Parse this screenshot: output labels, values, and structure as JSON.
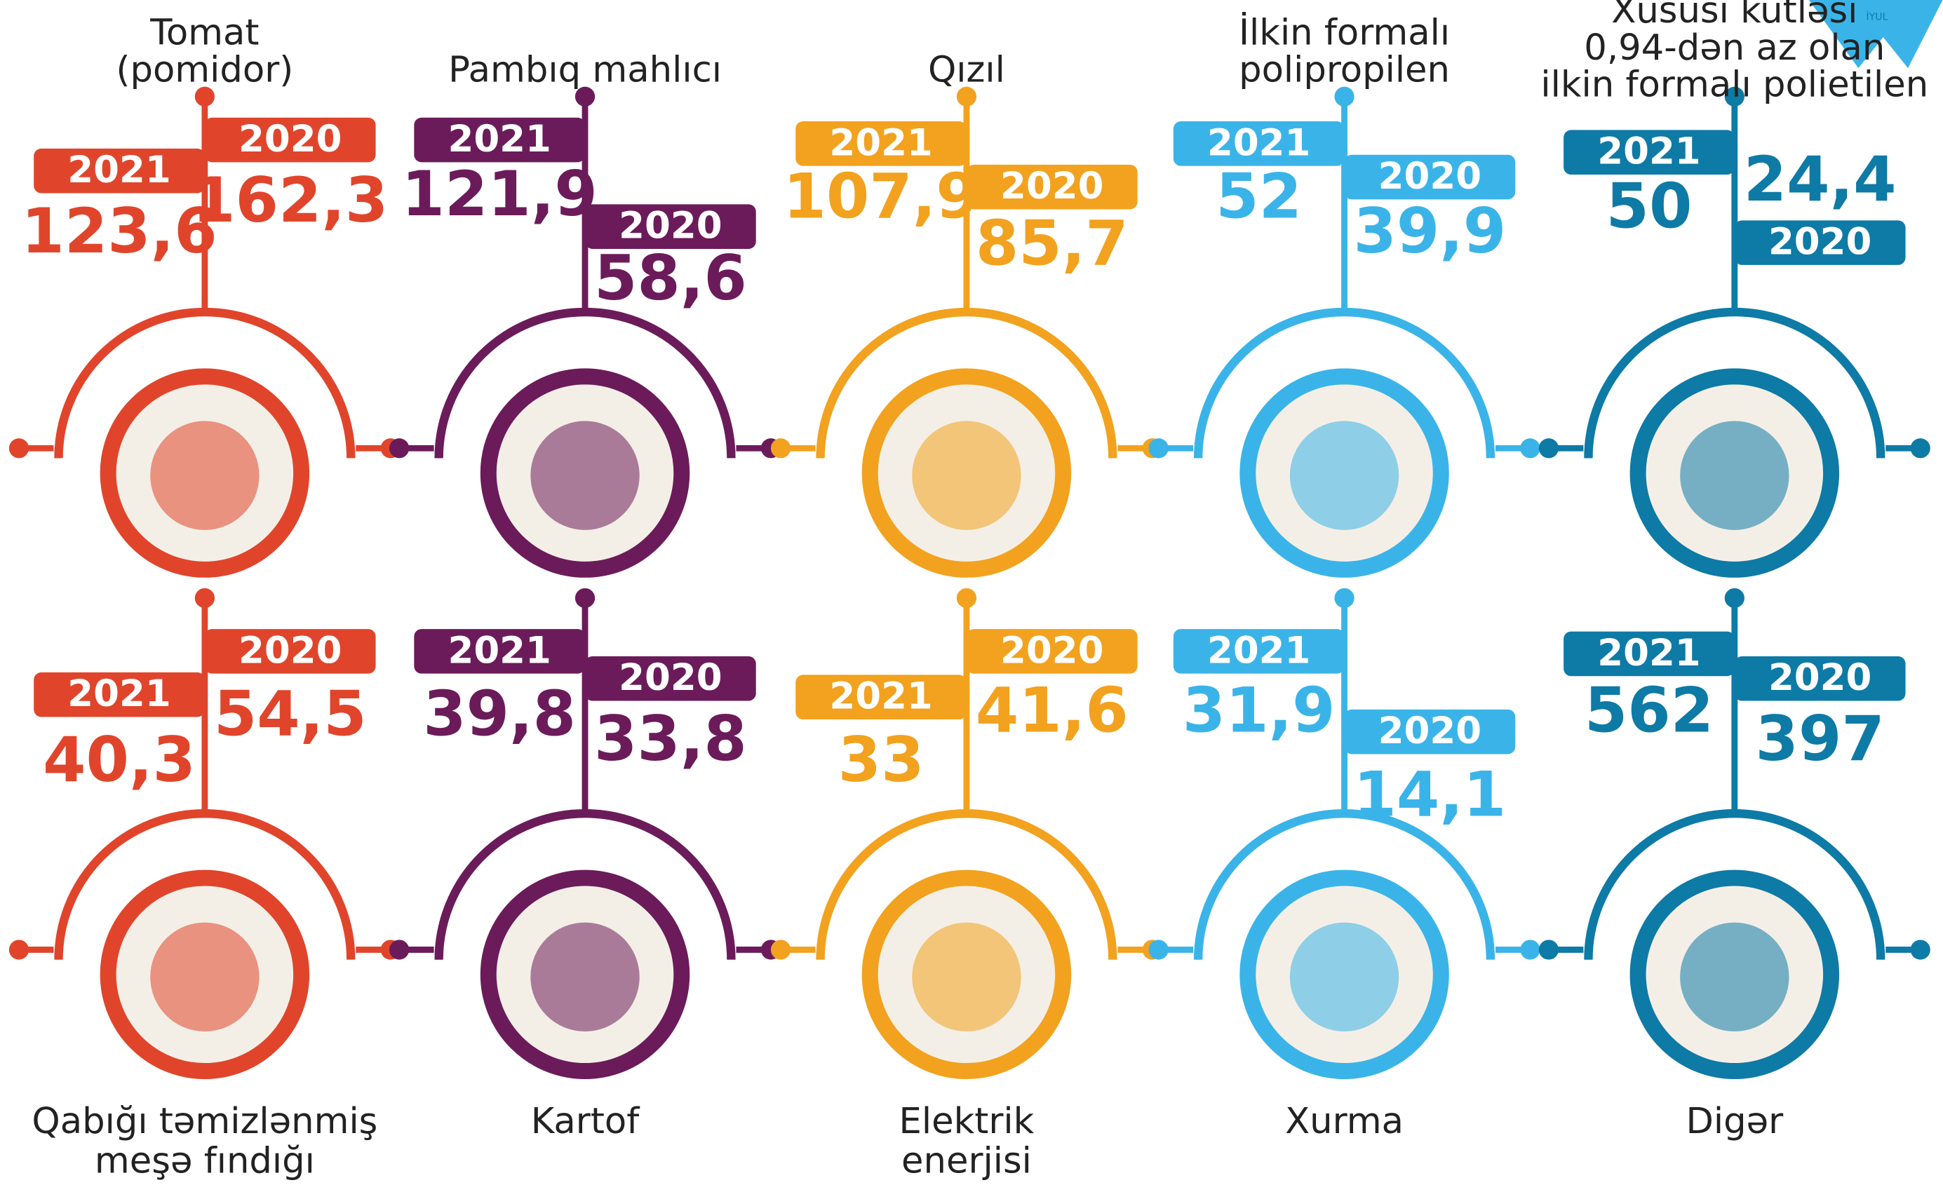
{
  "badge": "İYUL",
  "items": [
    {
      "label": [
        "Tomat",
        "(pomidor)"
      ],
      "color": "#e0452b",
      "year_a": "2021",
      "value_a": "123,6",
      "year_b": "2020",
      "value_b": "162,3"
    },
    {
      "label": [
        "Pambıq mahlıcı"
      ],
      "color": "#6b1b5a",
      "year_a": "2021",
      "value_a": "121,9",
      "year_b": "2020",
      "value_b": "58,6"
    },
    {
      "label": [
        "Qızıl"
      ],
      "color": "#f2a21e",
      "year_a": "2021",
      "value_a": "107,9",
      "year_b": "2020",
      "value_b": "85,7"
    },
    {
      "label": [
        "İlkin formalı",
        "polipropilen"
      ],
      "color": "#3ab4e8",
      "year_a": "2021",
      "value_a": "52",
      "year_b": "2020",
      "value_b": "39,9"
    },
    {
      "label": [
        "Xüsusi kütləsi",
        "0,94-dən az olan",
        "ilkin formalı polietilen"
      ],
      "color": "#0e7aa6",
      "year_a": "2021",
      "value_a": "50",
      "year_b": "2020",
      "value_b": "24,4"
    },
    {
      "label": [
        "Qabığı təmizlənmiş",
        "meşə fındığı"
      ],
      "color": "#e0452b",
      "year_a": "2021",
      "value_a": "40,3",
      "year_b": "2020",
      "value_b": "54,5"
    },
    {
      "label": [
        "Kartof"
      ],
      "color": "#6b1b5a",
      "year_a": "2021",
      "value_a": "39,8",
      "year_b": "2020",
      "value_b": "33,8"
    },
    {
      "label": [
        "Elektrik",
        "enerjisi"
      ],
      "color": "#f2a21e",
      "year_a": "2021",
      "value_a": "33",
      "year_b": "2020",
      "value_b": "41,6"
    },
    {
      "label": [
        "Xurma"
      ],
      "color": "#3ab4e8",
      "year_a": "2021",
      "value_a": "31,9",
      "year_b": "2020",
      "value_b": "14,1"
    },
    {
      "label": [
        "Digər"
      ],
      "color": "#0e7aa6",
      "year_a": "2021",
      "value_a": "562",
      "year_b": "2020",
      "value_b": "397"
    }
  ]
}
